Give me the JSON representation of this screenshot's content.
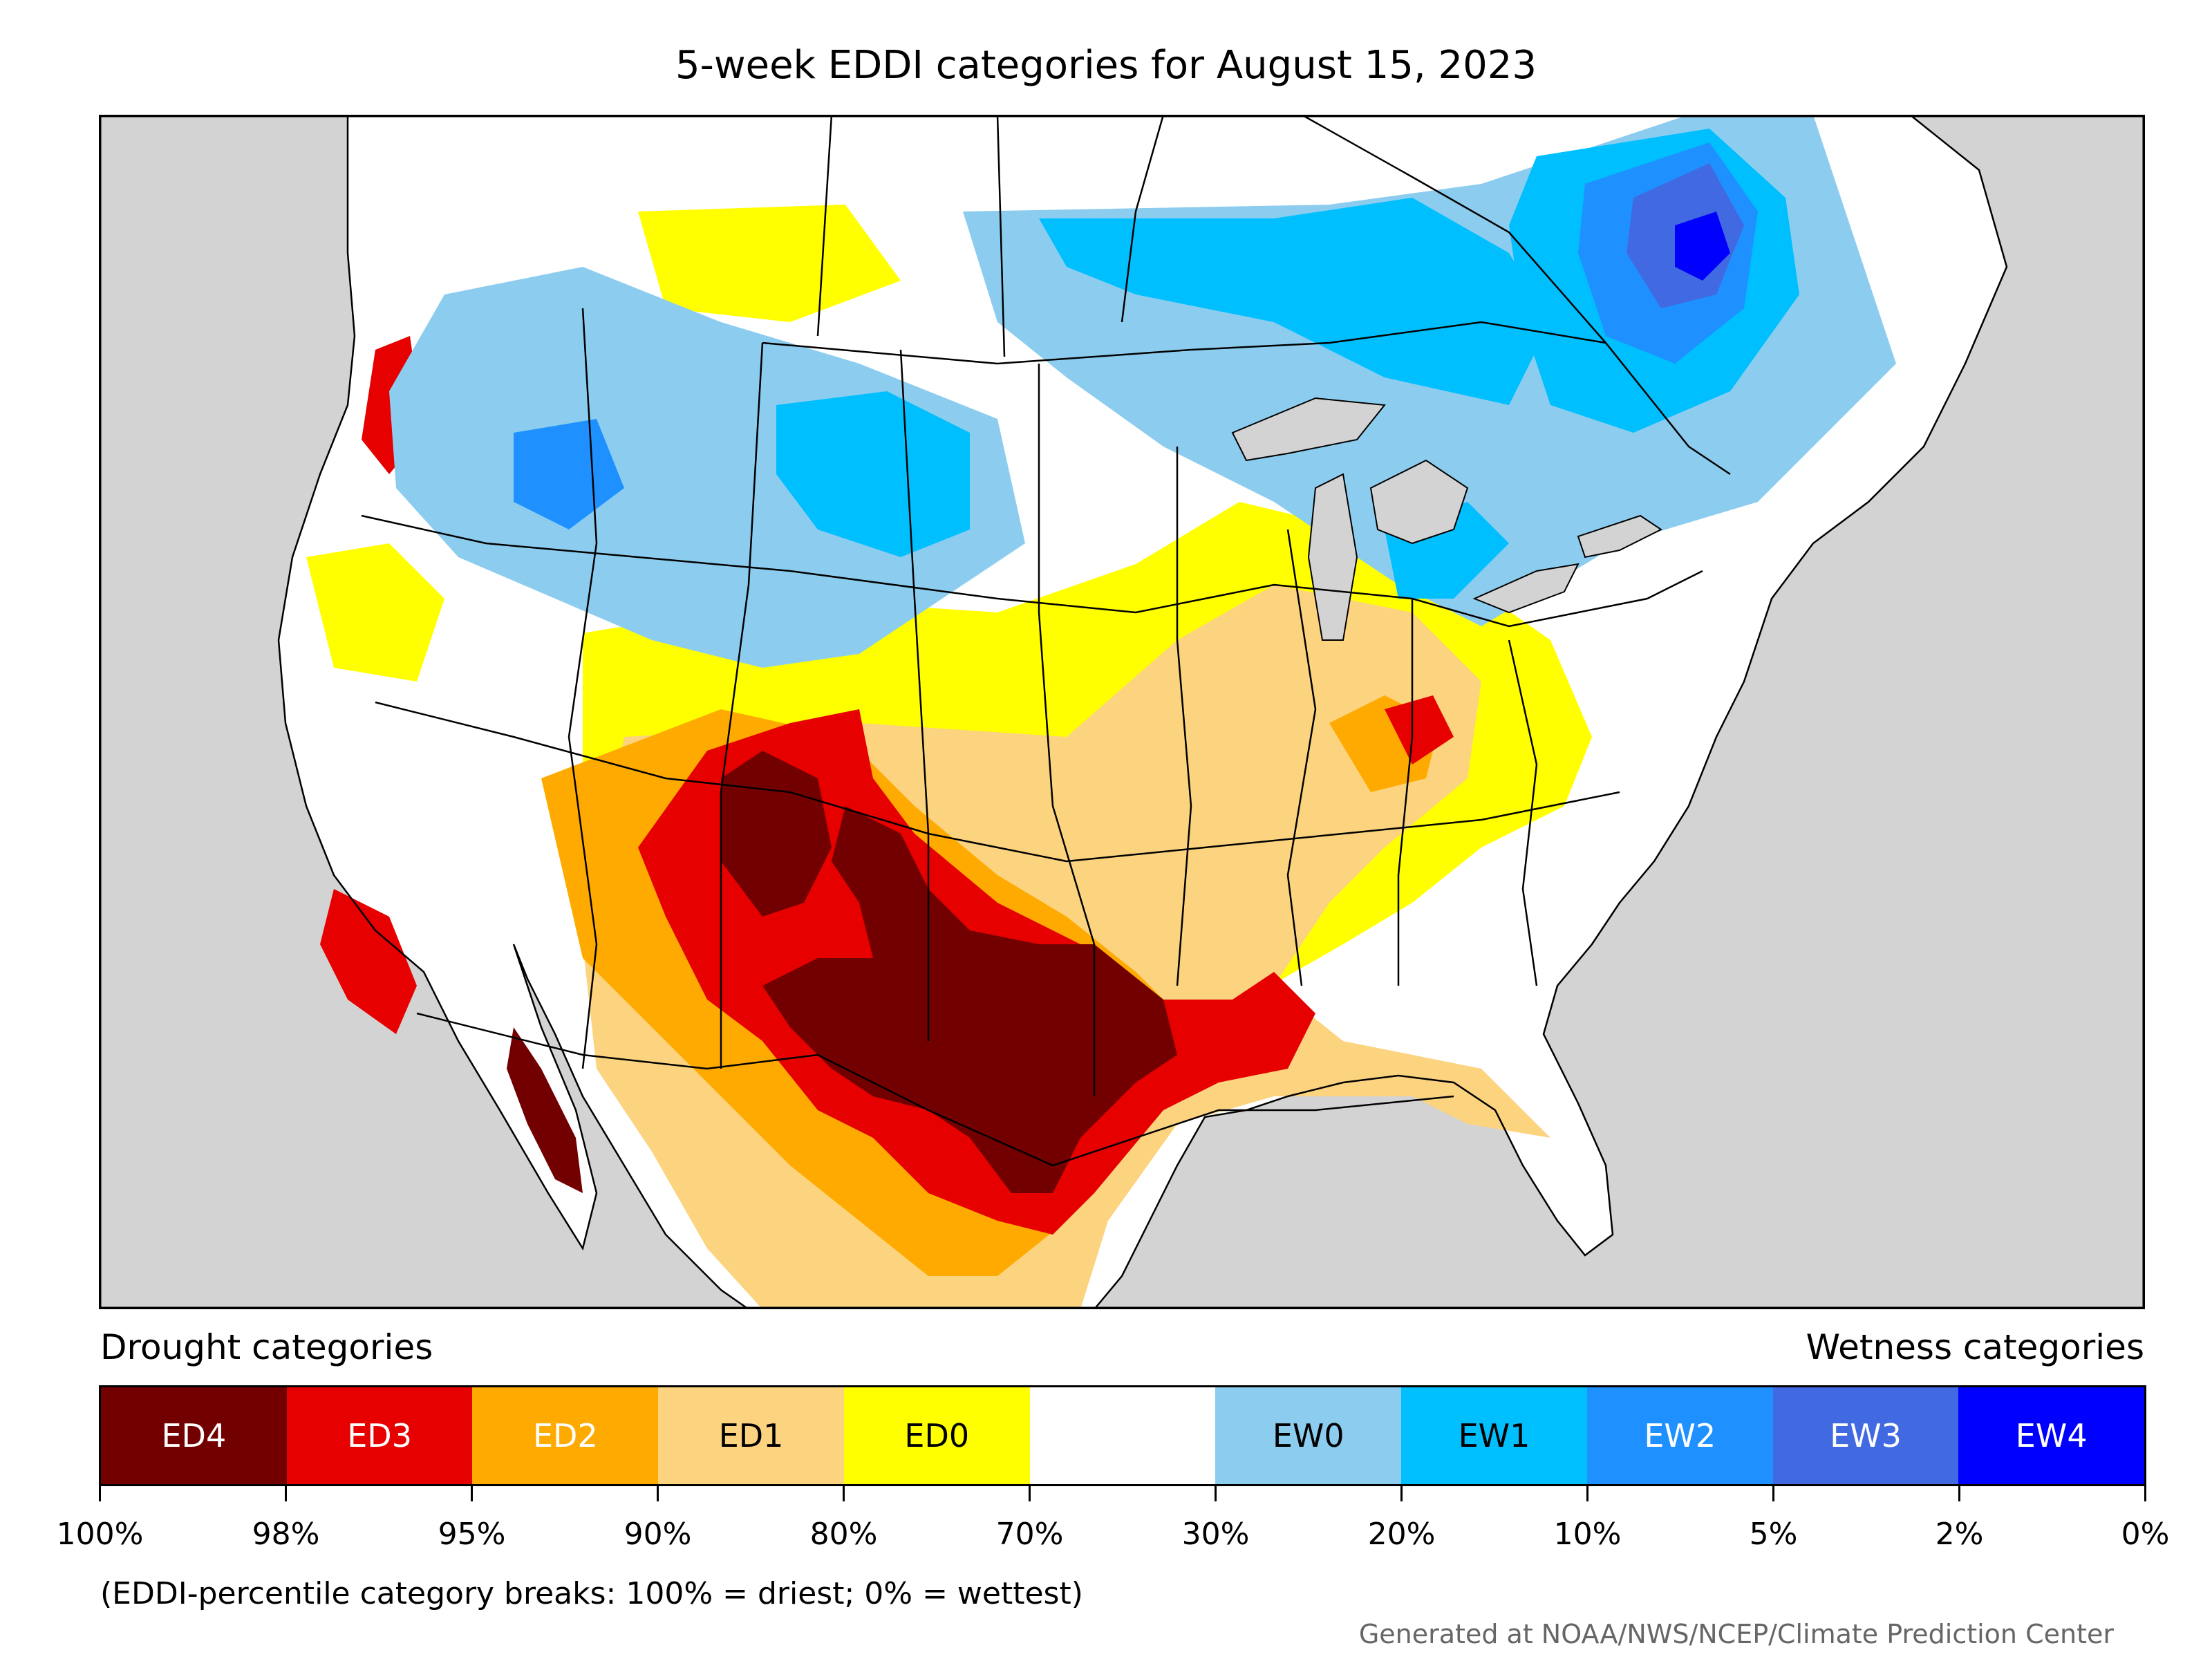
{
  "title": "5-week EDDI categories for August 15, 2023",
  "legend": {
    "drought_label": "Drought categories",
    "wetness_label": "Wetness categories",
    "categories": [
      {
        "label": "ED4",
        "color": "#730000",
        "text_color": "#ffffff"
      },
      {
        "label": "ED3",
        "color": "#e60000",
        "text_color": "#ffffff"
      },
      {
        "label": "ED2",
        "color": "#ffaa00",
        "text_color": "#ffffff"
      },
      {
        "label": "ED1",
        "color": "#fcd37f",
        "text_color": "#000000"
      },
      {
        "label": "ED0",
        "color": "#ffff00",
        "text_color": "#000000"
      },
      {
        "label": "",
        "color": "#ffffff",
        "text_color": "#000000"
      },
      {
        "label": "EW0",
        "color": "#8ccdef",
        "text_color": "#000000"
      },
      {
        "label": "EW1",
        "color": "#00bfff",
        "text_color": "#000000"
      },
      {
        "label": "EW2",
        "color": "#1e90ff",
        "text_color": "#ffffff"
      },
      {
        "label": "EW3",
        "color": "#4169e1",
        "text_color": "#ffffff"
      },
      {
        "label": "EW4",
        "color": "#0000ff",
        "text_color": "#ffffff"
      }
    ],
    "ticks": [
      "100%",
      "98%",
      "95%",
      "90%",
      "80%",
      "70%",
      "30%",
      "20%",
      "10%",
      "5%",
      "2%",
      "0%"
    ]
  },
  "note": "(EDDI-percentile category breaks: 100% = driest; 0% = wettest)",
  "credit": "Generated at NOAA/NWS/NCEP/Climate Prediction Center",
  "colors": {
    "ocean": "#d3d3d3",
    "land_background": "#ffffff",
    "boundary": "#000000"
  }
}
